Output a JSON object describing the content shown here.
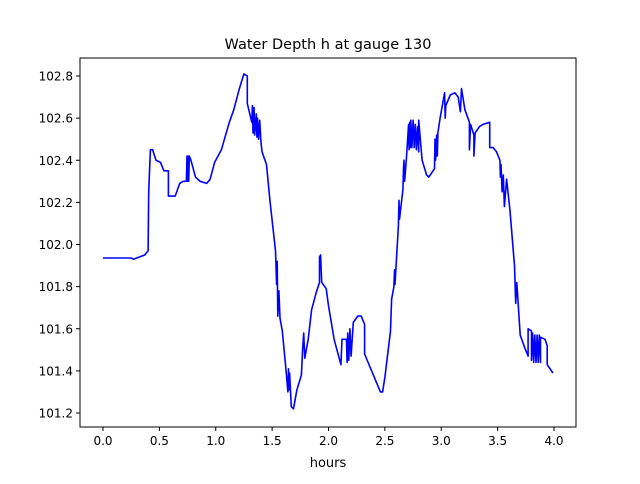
{
  "chart_data": {
    "type": "line",
    "title": "Water Depth h at gauge 130",
    "xlabel": "hours",
    "ylabel": "",
    "xlim": [
      -0.2,
      4.2
    ],
    "ylim": [
      101.14,
      102.89
    ],
    "xticks": [
      0.0,
      0.5,
      1.0,
      1.5,
      2.0,
      2.5,
      3.0,
      3.5,
      4.0
    ],
    "xtick_labels": [
      "0.0",
      "0.5",
      "1.0",
      "1.5",
      "2.0",
      "2.5",
      "3.0",
      "3.5",
      "4.0"
    ],
    "yticks": [
      101.2,
      101.4,
      101.6,
      101.8,
      102.0,
      102.2,
      102.4,
      102.6,
      102.8
    ],
    "ytick_labels": [
      "101.2",
      "101.4",
      "101.6",
      "101.8",
      "102.0",
      "102.2",
      "102.4",
      "102.6",
      "102.8"
    ],
    "grid": false,
    "series": [
      {
        "name": "h",
        "color": "#0000ff",
        "points": [
          [
            0.0,
            101.936
          ],
          [
            0.25,
            101.936
          ],
          [
            0.27,
            101.93
          ],
          [
            0.37,
            101.95
          ],
          [
            0.4,
            101.97
          ],
          [
            0.405,
            102.25
          ],
          [
            0.42,
            102.45
          ],
          [
            0.44,
            102.45
          ],
          [
            0.47,
            102.4
          ],
          [
            0.51,
            102.39
          ],
          [
            0.54,
            102.35
          ],
          [
            0.58,
            102.35
          ],
          [
            0.58,
            102.23
          ],
          [
            0.64,
            102.23
          ],
          [
            0.68,
            102.29
          ],
          [
            0.71,
            102.3
          ],
          [
            0.74,
            102.3
          ],
          [
            0.745,
            102.42
          ],
          [
            0.75,
            102.3
          ],
          [
            0.755,
            102.42
          ],
          [
            0.76,
            102.3
          ],
          [
            0.765,
            102.42
          ],
          [
            0.78,
            102.4
          ],
          [
            0.82,
            102.32
          ],
          [
            0.86,
            102.3
          ],
          [
            0.92,
            102.29
          ],
          [
            0.95,
            102.31
          ],
          [
            0.99,
            102.39
          ],
          [
            1.05,
            102.45
          ],
          [
            1.12,
            102.58
          ],
          [
            1.16,
            102.64
          ],
          [
            1.21,
            102.74
          ],
          [
            1.25,
            102.81
          ],
          [
            1.28,
            102.8
          ],
          [
            1.28,
            102.67
          ],
          [
            1.32,
            102.58
          ],
          [
            1.325,
            102.66
          ],
          [
            1.33,
            102.53
          ],
          [
            1.34,
            102.65
          ],
          [
            1.345,
            102.52
          ],
          [
            1.36,
            102.62
          ],
          [
            1.365,
            102.51
          ],
          [
            1.37,
            102.6
          ],
          [
            1.38,
            102.5
          ],
          [
            1.39,
            102.59
          ],
          [
            1.4,
            102.49
          ],
          [
            1.41,
            102.44
          ],
          [
            1.45,
            102.38
          ],
          [
            1.48,
            102.21
          ],
          [
            1.53,
            101.97
          ],
          [
            1.54,
            101.81
          ],
          [
            1.545,
            101.92
          ],
          [
            1.55,
            101.66
          ],
          [
            1.56,
            101.78
          ],
          [
            1.57,
            101.65
          ],
          [
            1.59,
            101.59
          ],
          [
            1.62,
            101.42
          ],
          [
            1.64,
            101.3
          ],
          [
            1.645,
            101.41
          ],
          [
            1.65,
            101.31
          ],
          [
            1.655,
            101.39
          ],
          [
            1.67,
            101.23
          ],
          [
            1.69,
            101.22
          ],
          [
            1.72,
            101.31
          ],
          [
            1.76,
            101.38
          ],
          [
            1.77,
            101.5
          ],
          [
            1.78,
            101.58
          ],
          [
            1.79,
            101.46
          ],
          [
            1.82,
            101.55
          ],
          [
            1.85,
            101.69
          ],
          [
            1.89,
            101.77
          ],
          [
            1.92,
            101.82
          ],
          [
            1.92,
            101.94
          ],
          [
            1.93,
            101.95
          ],
          [
            1.94,
            101.82
          ],
          [
            1.98,
            101.79
          ],
          [
            2.0,
            101.71
          ],
          [
            2.05,
            101.55
          ],
          [
            2.11,
            101.43
          ],
          [
            2.12,
            101.55
          ],
          [
            2.16,
            101.55
          ],
          [
            2.165,
            101.44
          ],
          [
            2.17,
            101.58
          ],
          [
            2.18,
            101.45
          ],
          [
            2.19,
            101.6
          ],
          [
            2.2,
            101.47
          ],
          [
            2.22,
            101.63
          ],
          [
            2.26,
            101.66
          ],
          [
            2.29,
            101.66
          ],
          [
            2.32,
            101.62
          ],
          [
            2.32,
            101.48
          ],
          [
            2.39,
            101.39
          ],
          [
            2.46,
            101.3
          ],
          [
            2.48,
            101.3
          ],
          [
            2.5,
            101.37
          ],
          [
            2.55,
            101.59
          ],
          [
            2.56,
            101.74
          ],
          [
            2.58,
            101.8
          ],
          [
            2.585,
            101.88
          ],
          [
            2.59,
            101.81
          ],
          [
            2.62,
            102.09
          ],
          [
            2.625,
            102.21
          ],
          [
            2.63,
            102.12
          ],
          [
            2.66,
            102.26
          ],
          [
            2.665,
            102.36
          ],
          [
            2.67,
            102.4
          ],
          [
            2.675,
            102.3
          ],
          [
            2.69,
            102.4
          ],
          [
            2.71,
            102.57
          ],
          [
            2.715,
            102.45
          ],
          [
            2.72,
            102.58
          ],
          [
            2.725,
            102.46
          ],
          [
            2.73,
            102.59
          ],
          [
            2.74,
            102.46
          ],
          [
            2.75,
            102.59
          ],
          [
            2.76,
            102.46
          ],
          [
            2.77,
            102.57
          ],
          [
            2.78,
            102.45
          ],
          [
            2.79,
            102.56
          ],
          [
            2.8,
            102.44
          ],
          [
            2.8,
            102.59
          ],
          [
            2.83,
            102.4
          ],
          [
            2.87,
            102.33
          ],
          [
            2.89,
            102.32
          ],
          [
            2.94,
            102.36
          ],
          [
            2.945,
            102.5
          ],
          [
            2.95,
            102.4
          ],
          [
            2.96,
            102.52
          ],
          [
            2.965,
            102.42
          ],
          [
            2.97,
            102.53
          ],
          [
            2.99,
            102.6
          ],
          [
            3.03,
            102.72
          ],
          [
            3.035,
            102.6
          ],
          [
            3.04,
            102.66
          ],
          [
            3.08,
            102.71
          ],
          [
            3.12,
            102.72
          ],
          [
            3.15,
            102.7
          ],
          [
            3.17,
            102.63
          ],
          [
            3.18,
            102.74
          ],
          [
            3.21,
            102.64
          ],
          [
            3.25,
            102.58
          ],
          [
            3.25,
            102.45
          ],
          [
            3.26,
            102.57
          ],
          [
            3.29,
            102.52
          ],
          [
            3.29,
            102.42
          ],
          [
            3.3,
            102.53
          ],
          [
            3.34,
            102.56
          ],
          [
            3.37,
            102.57
          ],
          [
            3.43,
            102.58
          ],
          [
            3.43,
            102.46
          ],
          [
            3.46,
            102.46
          ],
          [
            3.49,
            102.44
          ],
          [
            3.52,
            102.4
          ],
          [
            3.525,
            102.32
          ],
          [
            3.53,
            102.38
          ],
          [
            3.54,
            102.25
          ],
          [
            3.55,
            102.33
          ],
          [
            3.56,
            102.18
          ],
          [
            3.58,
            102.31
          ],
          [
            3.61,
            102.16
          ],
          [
            3.65,
            101.9
          ],
          [
            3.66,
            101.72
          ],
          [
            3.67,
            101.82
          ],
          [
            3.68,
            101.74
          ],
          [
            3.7,
            101.57
          ],
          [
            3.74,
            101.51
          ],
          [
            3.77,
            101.47
          ],
          [
            3.77,
            101.6
          ],
          [
            3.8,
            101.59
          ],
          [
            3.8,
            101.45
          ],
          [
            3.81,
            101.58
          ],
          [
            3.82,
            101.44
          ],
          [
            3.83,
            101.57
          ],
          [
            3.84,
            101.44
          ],
          [
            3.85,
            101.57
          ],
          [
            3.86,
            101.44
          ],
          [
            3.87,
            101.57
          ],
          [
            3.88,
            101.44
          ],
          [
            3.88,
            101.56
          ],
          [
            3.92,
            101.55
          ],
          [
            3.94,
            101.52
          ],
          [
            3.94,
            101.43
          ],
          [
            3.99,
            101.39
          ]
        ]
      }
    ]
  }
}
